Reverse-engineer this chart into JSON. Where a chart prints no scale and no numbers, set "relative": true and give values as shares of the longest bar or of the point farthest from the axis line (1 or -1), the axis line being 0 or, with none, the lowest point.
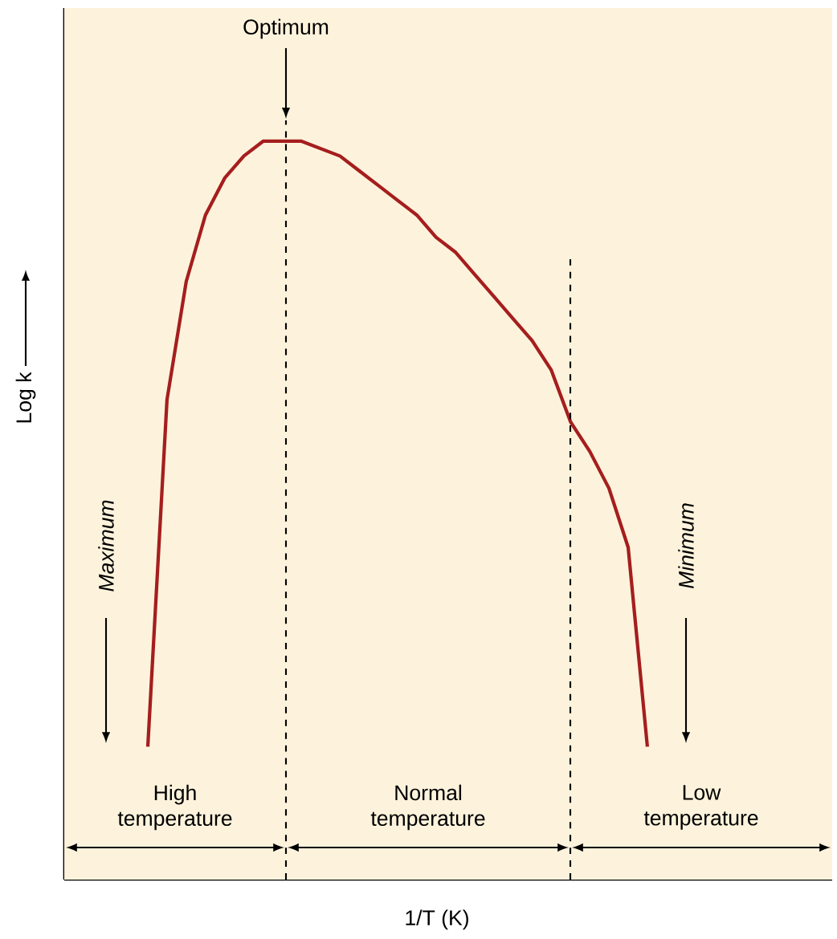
{
  "chart_data": {
    "type": "line",
    "relative": true,
    "xlabel": "1/T (K)",
    "ylabel": "Log k",
    "categories": [
      null,
      null,
      null,
      null,
      null,
      null,
      null,
      null,
      null,
      null,
      null,
      null,
      null,
      null,
      null,
      null,
      null,
      null,
      null,
      null,
      null,
      null,
      null,
      null,
      null,
      null,
      null
    ],
    "series": [
      {
        "color": "#a51e1e",
        "values": [
          0.18,
          0.65,
          0.81,
          0.9,
          0.95,
          0.98,
          1.0,
          1.0,
          1.0,
          0.99,
          0.98,
          0.96,
          0.94,
          0.92,
          0.9,
          0.87,
          0.85,
          0.82,
          0.79,
          0.76,
          0.73,
          0.69,
          0.62,
          0.58,
          0.53,
          0.45,
          0.18
        ]
      }
    ],
    "annotations": [
      "Optimum",
      "Maximum",
      "Minimum",
      "High temperature",
      "Normal temperature",
      "Low temperature"
    ]
  }
}
